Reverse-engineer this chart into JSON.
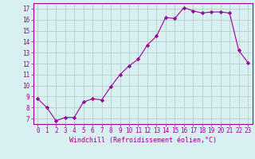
{
  "x": [
    0,
    1,
    2,
    3,
    4,
    5,
    6,
    7,
    8,
    9,
    10,
    11,
    12,
    13,
    14,
    15,
    16,
    17,
    18,
    19,
    20,
    21,
    22,
    23
  ],
  "y": [
    8.8,
    8.0,
    6.8,
    7.1,
    7.1,
    8.5,
    8.8,
    8.7,
    9.9,
    11.0,
    11.8,
    12.4,
    13.7,
    14.5,
    16.2,
    16.1,
    17.1,
    16.8,
    16.6,
    16.7,
    16.7,
    16.6,
    13.2,
    12.1
  ],
  "line_color": "#990099",
  "marker": "D",
  "marker_size": 2.2,
  "bg_color": "#d8f0f0",
  "grid_color": "#b0c8c8",
  "ylabel_ticks": [
    7,
    8,
    9,
    10,
    11,
    12,
    13,
    14,
    15,
    16,
    17
  ],
  "ylim": [
    6.5,
    17.5
  ],
  "xlim": [
    -0.5,
    23.5
  ],
  "xlabel": "Windchill (Refroidissement éolien,°C)",
  "xlabel_color": "#990099",
  "tick_color": "#990099",
  "axis_color": "#990099",
  "tick_fontsize": 5.5,
  "xlabel_fontsize": 6.0,
  "linewidth": 0.8
}
